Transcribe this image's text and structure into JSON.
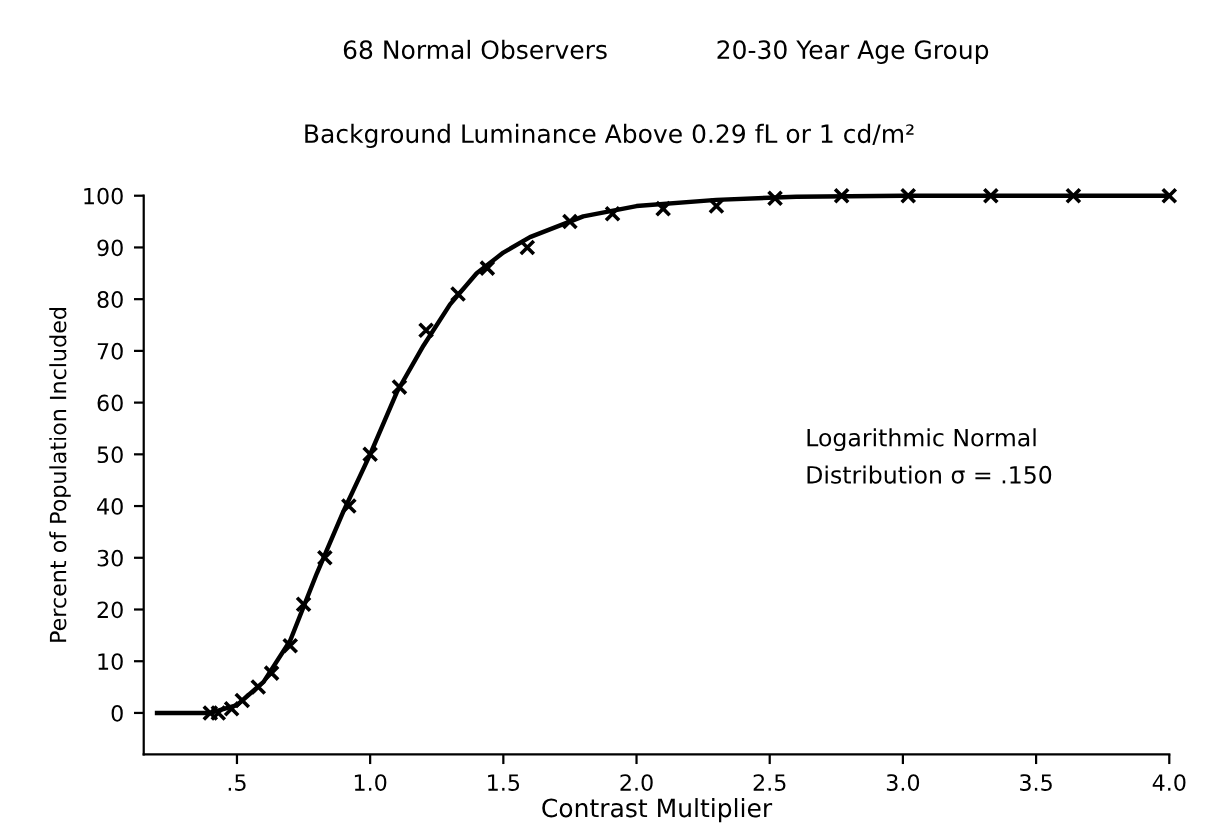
{
  "chart_data": {
    "type": "line",
    "title": "68 Normal Observers",
    "subtitle": "Background Luminance Above 0.29 fL or 1 cd/m²",
    "xlabel": "Contrast Multiplier",
    "ylabel": "Percent of Population Included",
    "annotations": [
      "20-30 Year Age Group",
      "Logarithmic Normal\nDistribution σ = .150"
    ],
    "series": [
      {
        "color": "#000000",
        "marker": "none",
        "x": [
          0.2,
          0.4,
          0.5,
          0.6,
          0.7,
          0.8,
          0.9,
          1.0,
          1.1,
          1.2,
          1.3,
          1.4,
          1.5,
          1.6,
          1.8,
          2.0,
          2.3,
          2.6,
          3.0,
          4.0
        ],
        "values": [
          0,
          0,
          1.5,
          6,
          14,
          27,
          39,
          50,
          62,
          71,
          79,
          85,
          89,
          92,
          96,
          98,
          99.2,
          99.8,
          100,
          100
        ]
      },
      {
        "type": "scatter",
        "color": "#000000",
        "marker": "cross",
        "x": [
          0.4,
          0.43,
          0.48,
          0.52,
          0.58,
          0.63,
          0.7,
          0.75,
          0.83,
          0.92,
          1.0,
          1.11,
          1.21,
          1.33,
          1.44,
          1.59,
          1.75,
          1.91,
          2.1,
          2.3,
          2.52,
          2.77,
          3.02,
          3.33,
          3.64,
          4.0
        ],
        "values": [
          0,
          0,
          0.8,
          2.4,
          5,
          7.7,
          13,
          21,
          30,
          40,
          50,
          63,
          74,
          81,
          86,
          90,
          95,
          96.5,
          97.5,
          98,
          99.5,
          100,
          100,
          100,
          100,
          100
        ]
      }
    ],
    "xlim": [
      0.15,
      4.0
    ],
    "ylim": [
      -8,
      100
    ],
    "xticks": [
      {
        "value": 0.5,
        "label": ".5"
      },
      {
        "value": 1.0,
        "label": "1.0"
      },
      {
        "value": 1.5,
        "label": "1.5"
      },
      {
        "value": 2.0,
        "label": "2.0"
      },
      {
        "value": 2.5,
        "label": "2.5"
      },
      {
        "value": 3.0,
        "label": "3.0"
      },
      {
        "value": 3.5,
        "label": "3.5"
      },
      {
        "value": 4.0,
        "label": "4.0"
      }
    ],
    "yticks": [
      0,
      10,
      20,
      30,
      40,
      50,
      60,
      70,
      80,
      90,
      100
    ],
    "grid": false,
    "legend": false
  }
}
